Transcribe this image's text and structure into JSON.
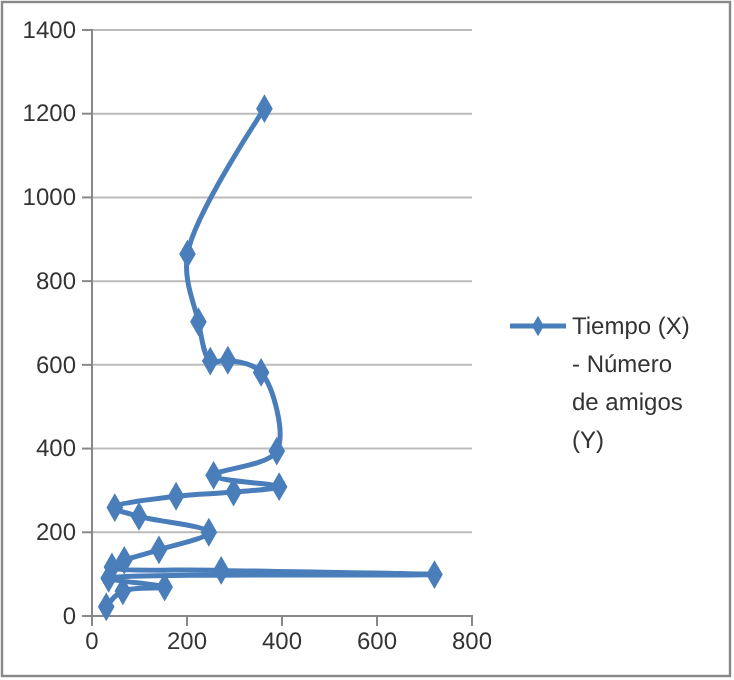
{
  "chart_data": {
    "type": "line",
    "xlim": [
      0,
      800
    ],
    "xticks": [
      0,
      200,
      400,
      600,
      800
    ],
    "ylim": [
      0,
      1400
    ],
    "yticks": [
      0,
      200,
      400,
      600,
      800,
      1000,
      1200,
      1400
    ],
    "grid": "y",
    "legend": "right",
    "marker": "diamond",
    "line_style": "solid",
    "series": [
      {
        "name": "Tiempo (X)  -   Número de amigos (Y)",
        "color": "#4a7ebb",
        "x": [
          363,
          201,
          224,
          249,
          286,
          356,
          389,
          256,
          394,
          298,
          177,
          48,
          99,
          246,
          141,
          68,
          42,
          272,
          721,
          35,
          153,
          65,
          30
        ],
        "values": [
          1212,
          865,
          703,
          609,
          611,
          582,
          394,
          336,
          309,
          296,
          286,
          259,
          238,
          200,
          158,
          133,
          117,
          109,
          99,
          90,
          69,
          60,
          22
        ]
      }
    ]
  }
}
